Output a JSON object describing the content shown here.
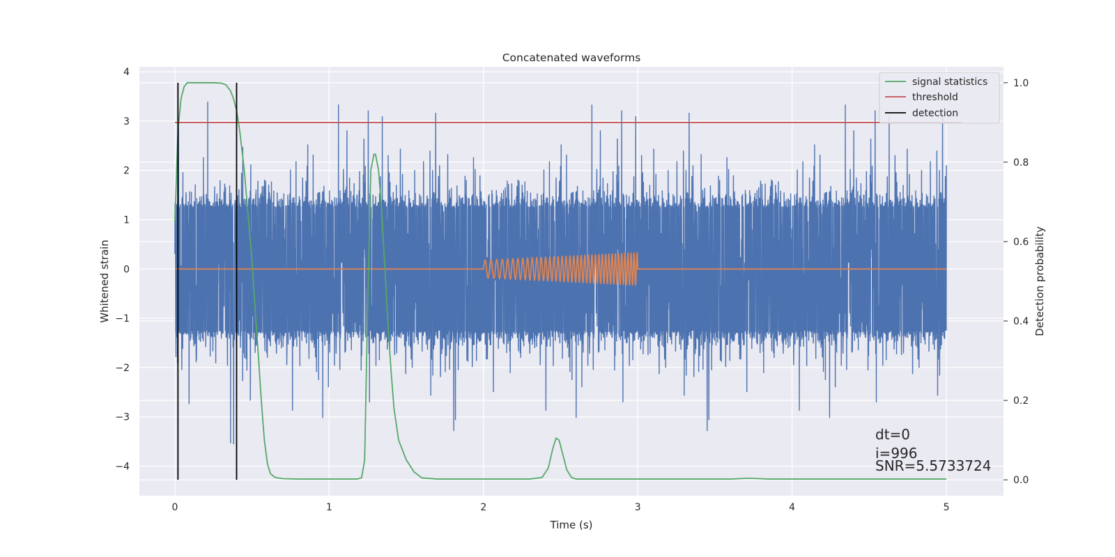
{
  "chart_data": {
    "type": "line",
    "title": "Concatenated waveforms",
    "xlabel": "Time (s)",
    "ylabel": "Whitened strain",
    "ylabel_right": "Detection probability",
    "xlim": [
      -0.23,
      5.37
    ],
    "ylim": [
      -4.6,
      4.1
    ],
    "ylim_right": [
      -0.04,
      1.04
    ],
    "x_ticks": [
      0,
      1,
      2,
      3,
      4,
      5
    ],
    "y_ticks": [
      -4,
      -3,
      -2,
      -1,
      0,
      1,
      2,
      3,
      4
    ],
    "y_ticks_right": [
      0.0,
      0.2,
      0.4,
      0.6,
      0.8,
      1.0
    ],
    "y_tick_labels": [
      "−4",
      "−3",
      "−2",
      "−1",
      "0",
      "1",
      "2",
      "3",
      "4"
    ],
    "y_tick_labels_right": [
      "0.0",
      "0.2",
      "0.4",
      "0.6",
      "0.8",
      "1.0"
    ],
    "grid": true,
    "legend_position": "top-right",
    "legend": [
      {
        "label": "signal statistics",
        "color": "#55a868"
      },
      {
        "label": "threshold",
        "color": "#c44e52"
      },
      {
        "label": "detection",
        "color": "#000000"
      }
    ],
    "series": [
      {
        "name": "",
        "axis": "left",
        "color": "#4c72b0",
        "kind": "noise",
        "x_range": [
          0,
          5
        ],
        "sigma": 0.85,
        "envelope": 1.25,
        "samples": 5000
      },
      {
        "name": "",
        "axis": "left",
        "color": "#dd8452",
        "kind": "chirp",
        "x_range": [
          0,
          5
        ],
        "chirp_window": [
          2.0,
          3.0
        ],
        "amplitude_start": 0.18,
        "amplitude_end": 0.33,
        "frequency_start": 25,
        "frequency_end": 52
      },
      {
        "name": "signal statistics",
        "axis": "right",
        "color": "#55a868",
        "x": [
          0.0,
          0.02,
          0.04,
          0.06,
          0.08,
          0.1,
          0.15,
          0.2,
          0.25,
          0.3,
          0.33,
          0.36,
          0.38,
          0.4,
          0.42,
          0.45,
          0.48,
          0.5,
          0.52,
          0.54,
          0.56,
          0.58,
          0.6,
          0.62,
          0.65,
          0.7,
          0.8,
          1.0,
          1.1,
          1.18,
          1.21,
          1.23,
          1.25,
          1.27,
          1.29,
          1.3,
          1.32,
          1.34,
          1.36,
          1.38,
          1.4,
          1.42,
          1.45,
          1.5,
          1.55,
          1.6,
          1.7,
          2.0,
          2.3,
          2.38,
          2.42,
          2.45,
          2.47,
          2.49,
          2.51,
          2.54,
          2.57,
          2.6,
          2.7,
          3.0,
          3.5,
          3.6,
          3.72,
          3.85,
          4.0,
          4.5,
          5.0
        ],
        "values": [
          0.65,
          0.88,
          0.96,
          0.99,
          1.0,
          1.0,
          1.0,
          1.0,
          1.0,
          0.999,
          0.995,
          0.98,
          0.96,
          0.93,
          0.88,
          0.78,
          0.64,
          0.55,
          0.43,
          0.32,
          0.2,
          0.1,
          0.04,
          0.015,
          0.006,
          0.003,
          0.002,
          0.002,
          0.002,
          0.002,
          0.005,
          0.05,
          0.45,
          0.78,
          0.82,
          0.82,
          0.78,
          0.68,
          0.54,
          0.4,
          0.28,
          0.18,
          0.1,
          0.05,
          0.02,
          0.005,
          0.002,
          0.002,
          0.002,
          0.006,
          0.03,
          0.08,
          0.105,
          0.1,
          0.07,
          0.025,
          0.006,
          0.002,
          0.002,
          0.002,
          0.002,
          0.002,
          0.004,
          0.002,
          0.002,
          0.002,
          0.002
        ]
      },
      {
        "name": "threshold",
        "axis": "right",
        "color": "#c44e52",
        "x": [
          0.0,
          5.1
        ],
        "values": [
          0.9,
          0.9
        ]
      },
      {
        "name": "detection",
        "axis": "right",
        "color": "#000000",
        "kind": "vlines",
        "x": [
          0.02,
          0.4
        ],
        "values": [
          1.0,
          1.0
        ]
      }
    ],
    "annotations": [
      "dt=0",
      "i=996",
      "SNR=5.5733724"
    ]
  }
}
